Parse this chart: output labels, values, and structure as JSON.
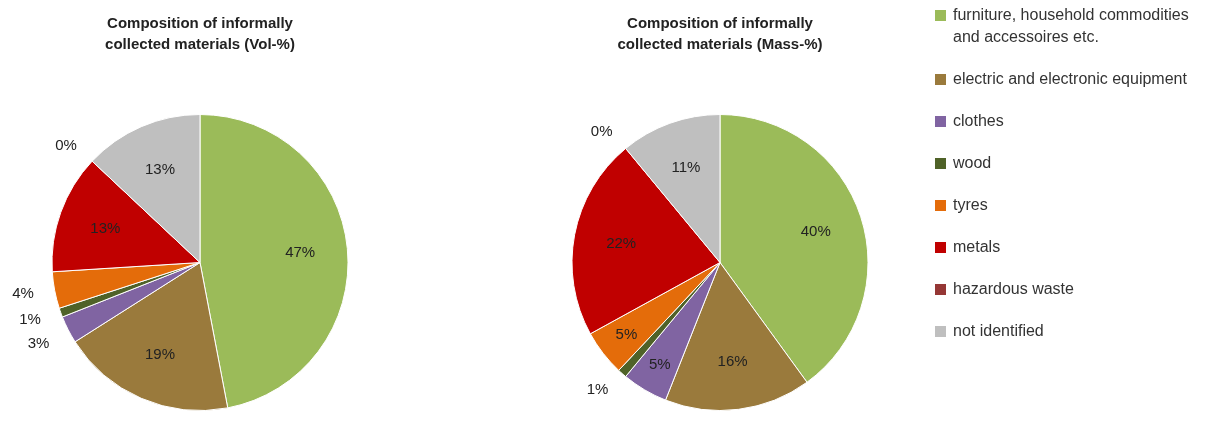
{
  "chart_data": [
    {
      "type": "pie",
      "title": "Composition of informally collected materials (Vol-%)",
      "categories": [
        null,
        null,
        null,
        null,
        null,
        null,
        null,
        null
      ],
      "values": [
        47,
        19,
        3,
        1,
        4,
        13,
        0,
        13
      ],
      "value_labels": [
        "47%",
        "19%",
        "3%",
        "1%",
        "4%",
        "13%",
        "0%",
        "13%"
      ],
      "colors": [
        "#9bbb59",
        "#9a7a3c",
        "#8064a2",
        "#4f6228",
        "#e46c0a",
        "#c00000",
        "#953735",
        "#bfbfbf"
      ]
    },
    {
      "type": "pie",
      "title": "Composition of informally collected materials (Mass-%)",
      "categories": [
        "furniture, household commodities and accessoires etc.",
        "electric and electronic equipment",
        "clothes",
        "wood",
        "tyres",
        "metals",
        "hazardous waste",
        "not identified"
      ],
      "values": [
        40,
        16,
        5,
        1,
        5,
        22,
        0,
        11
      ],
      "value_labels": [
        "40%",
        "16%",
        "5%",
        "1%",
        "5%",
        "22%",
        "0%",
        "11%"
      ],
      "colors": [
        "#9bbb59",
        "#9a7a3c",
        "#8064a2",
        "#4f6228",
        "#e46c0a",
        "#c00000",
        "#953735",
        "#bfbfbf"
      ],
      "legend": "right"
    }
  ]
}
